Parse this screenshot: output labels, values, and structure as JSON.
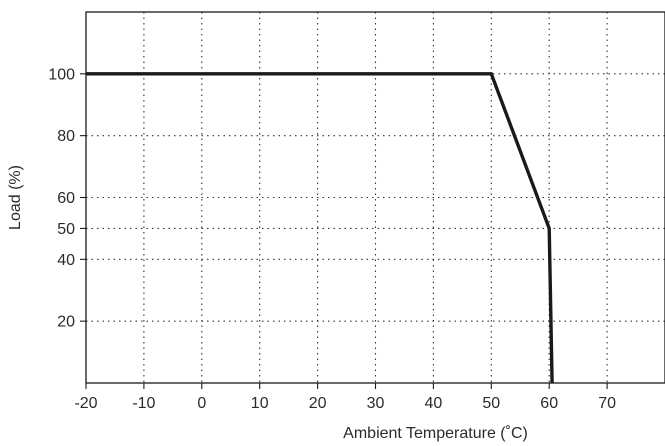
{
  "chart_data": {
    "type": "line",
    "title": "",
    "xlabel": "Ambient Temperature (˚C)",
    "ylabel": "Load (%)",
    "xlim": [
      -20,
      80
    ],
    "ylim": [
      0,
      120
    ],
    "x_ticks": [
      -20,
      -10,
      0,
      10,
      20,
      30,
      40,
      50,
      60,
      70
    ],
    "y_ticks": [
      20,
      40,
      50,
      60,
      80,
      100
    ],
    "grid": true,
    "grid_style": "dotted",
    "line_color": "#1a1a1a",
    "series": [
      {
        "x": [
          -20,
          50,
          60,
          60.5
        ],
        "y": [
          100,
          100,
          50,
          0
        ]
      }
    ]
  }
}
